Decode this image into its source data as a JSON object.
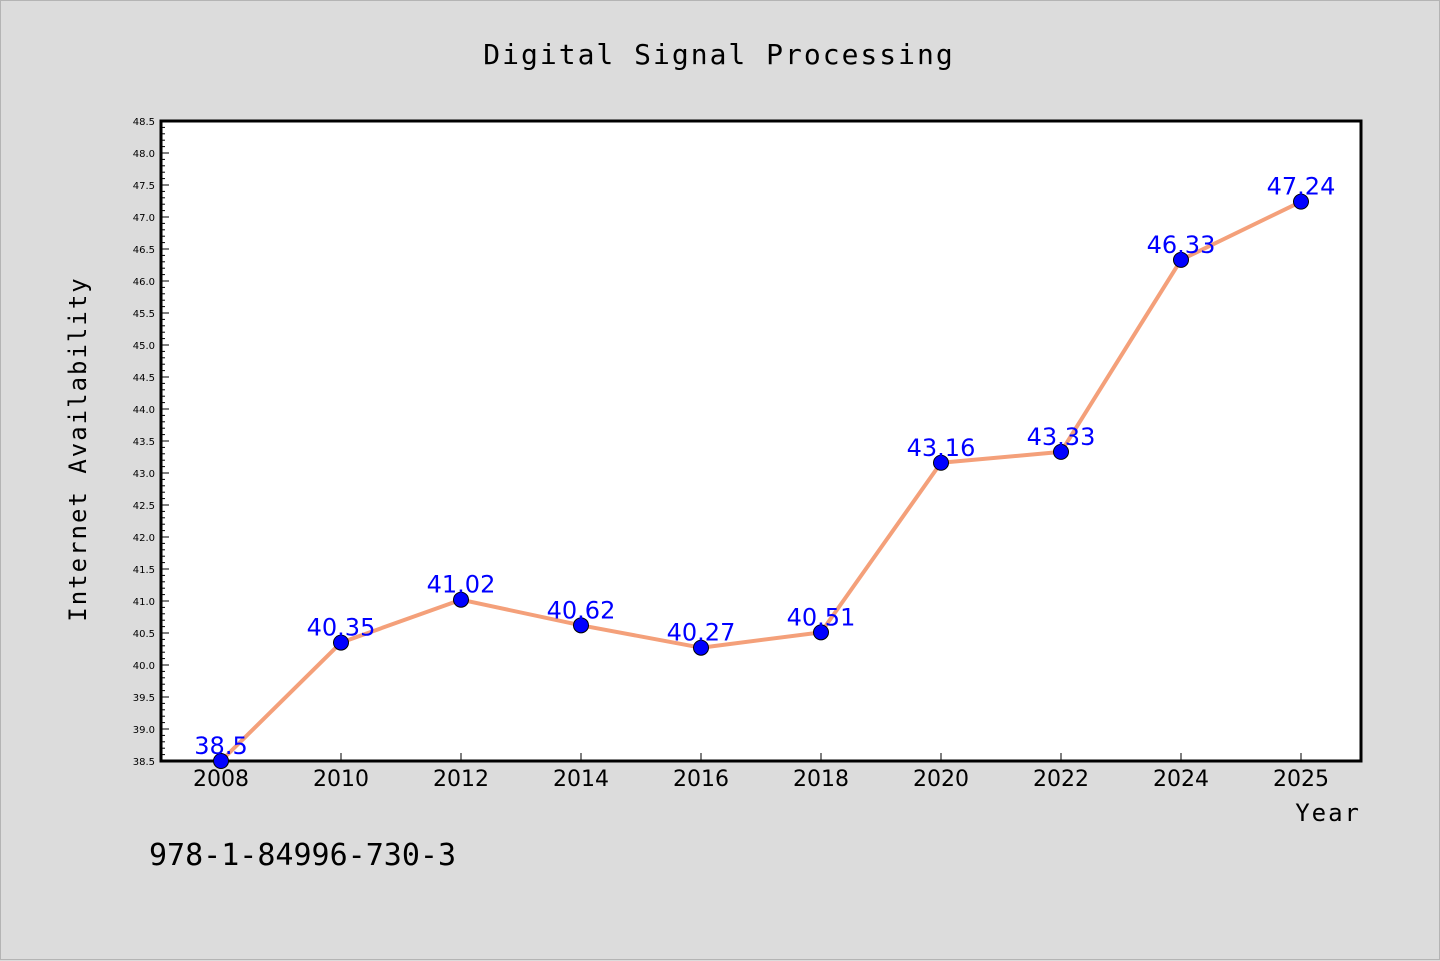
{
  "chart_data": {
    "type": "line",
    "title": "Digital Signal Processing",
    "xlabel": "Year",
    "ylabel": "Internet Availability",
    "x": [
      "2008",
      "2010",
      "2012",
      "2014",
      "2016",
      "2018",
      "2020",
      "2022",
      "2024",
      "2025"
    ],
    "values": [
      38.5,
      40.35,
      41.02,
      40.62,
      40.27,
      40.51,
      43.16,
      43.33,
      46.33,
      47.24
    ],
    "data_labels": [
      "38.5",
      "40.35",
      "41.02",
      "40.62",
      "40.27",
      "40.51",
      "43.16",
      "43.33",
      "46.33",
      "47.24"
    ],
    "ylim": [
      38.5,
      48.5
    ],
    "yticks": [
      "38.5",
      "39.0",
      "39.5",
      "40.0",
      "40.5",
      "41.0",
      "41.5",
      "42.0",
      "42.5",
      "43.0",
      "43.5",
      "44.0",
      "44.5",
      "45.0",
      "45.5",
      "46.0",
      "46.5",
      "47.0",
      "47.5",
      "48.0",
      "48.5"
    ],
    "grid": false,
    "colors": {
      "background": "#dcdcdc",
      "plot_background": "#ffffff",
      "line": "#f4a07a",
      "marker": "#0000ff",
      "data_label": "#0000ff"
    }
  },
  "footnote": "978-1-84996-730-3"
}
